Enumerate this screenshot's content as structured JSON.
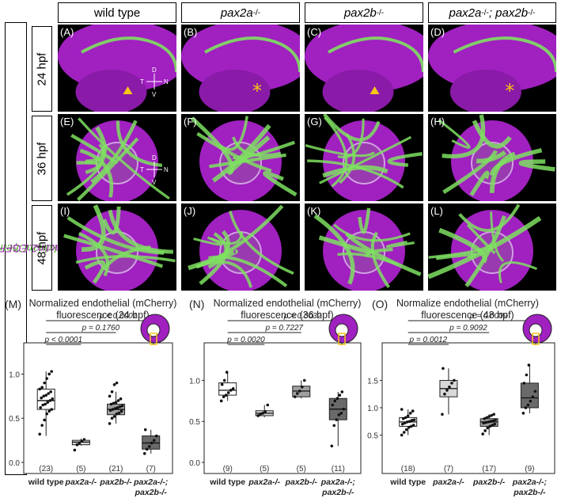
{
  "figure": {
    "side_label_green": "kdrl:mCherry-ras",
    "side_label_sep": "; ",
    "side_label_magenta": "bactin2:EGFP-CAAX",
    "columns": [
      {
        "text": "wild type"
      },
      {
        "text": "pax2a",
        "sup": "-/-"
      },
      {
        "text": "pax2b",
        "sup": "-/-"
      },
      {
        "text": "pax2a",
        "sup": "-/-",
        "text2": "; pax2b",
        "sup2": "-/-"
      }
    ],
    "rows": [
      "24 hpf",
      "36 hpf",
      "48 hpf"
    ],
    "panel_labels": [
      "(A)",
      "(B)",
      "(C)",
      "(D)",
      "(E)",
      "(F)",
      "(G)",
      "(H)",
      "(I)",
      "(J)",
      "(K)",
      "(L)"
    ],
    "axes_marker": {
      "d": "D",
      "v": "V",
      "t": "T",
      "n": "N"
    },
    "colors": {
      "magenta": "#a020c0",
      "green": "#7ee060",
      "yellow": "#f5c518"
    }
  },
  "chart_data": [
    {
      "type": "box",
      "letter": "(M)",
      "title_line1": "Normalized endothelial (mCherry)",
      "title_line2": "fluorescence (24 hpf)",
      "categories": [
        "wild type",
        "pax2a-/-",
        "pax2b-/-",
        "pax2a-/-; pax2b-/-"
      ],
      "n_labels": [
        "(23)",
        "(5)",
        "(21)",
        "(7)"
      ],
      "ylim": [
        0,
        1.3
      ],
      "yticks": [
        0.0,
        0.5,
        1.0
      ],
      "ytick_labels": [
        "0.0",
        "0.5",
        "1.0"
      ],
      "boxes": [
        {
          "min": 0.3,
          "q1": 0.6,
          "median": 0.7,
          "q3": 0.83,
          "max": 1.03,
          "fill": "#ffffff"
        },
        {
          "min": 0.19,
          "q1": 0.2,
          "median": 0.23,
          "q3": 0.25,
          "max": 0.27,
          "fill": "#d8d8d8"
        },
        {
          "min": 0.44,
          "q1": 0.54,
          "median": 0.6,
          "q3": 0.66,
          "max": 0.8,
          "fill": "#a0a0a0"
        },
        {
          "min": 0.1,
          "q1": 0.15,
          "median": 0.22,
          "q3": 0.3,
          "max": 0.37,
          "fill": "#6a6a6a"
        }
      ],
      "points": [
        [
          0.32,
          0.42,
          0.48,
          0.55,
          0.58,
          0.6,
          0.62,
          0.65,
          0.66,
          0.68,
          0.7,
          0.72,
          0.73,
          0.75,
          0.76,
          0.78,
          0.8,
          0.83,
          0.85,
          0.9,
          0.95,
          1.0,
          1.03
        ],
        [
          0.14,
          0.2,
          0.22,
          0.24,
          0.26
        ],
        [
          0.44,
          0.5,
          0.52,
          0.55,
          0.56,
          0.58,
          0.59,
          0.6,
          0.61,
          0.62,
          0.63,
          0.64,
          0.66,
          0.67,
          0.68,
          0.7,
          0.72,
          0.75,
          0.8,
          0.88,
          0.9
        ],
        [
          0.1,
          0.15,
          0.18,
          0.22,
          0.25,
          0.3,
          0.37
        ]
      ],
      "pvalues": [
        {
          "from": 0,
          "to": 3,
          "label": "p < 0.0001"
        },
        {
          "from": 0,
          "to": 2,
          "label": "p = 0.1760"
        },
        {
          "from": 0,
          "to": 1,
          "label": "p < 0.0001"
        }
      ]
    },
    {
      "type": "box",
      "letter": "(N)",
      "title_line1": "Normalized endothelial (mCherry)",
      "title_line2": "fluorescence (36 hpf)",
      "categories": [
        "wild type",
        "pax2a-/-",
        "pax2b-/-",
        "pax2a-/-; pax2b-/-"
      ],
      "n_labels": [
        "(9)",
        "(5)",
        "(5)",
        "(11)"
      ],
      "ylim": [
        0,
        1.4
      ],
      "yticks": [
        0.0,
        0.5,
        1.0
      ],
      "ytick_labels": [
        "0.0",
        "0.5",
        "1.0"
      ],
      "boxes": [
        {
          "min": 0.75,
          "q1": 0.82,
          "median": 0.88,
          "q3": 0.97,
          "max": 1.1,
          "fill": "#ffffff"
        },
        {
          "min": 0.55,
          "q1": 0.57,
          "median": 0.6,
          "q3": 0.63,
          "max": 0.7,
          "fill": "#d8d8d8"
        },
        {
          "min": 0.78,
          "q1": 0.8,
          "median": 0.87,
          "q3": 0.93,
          "max": 1.0,
          "fill": "#a0a0a0"
        },
        {
          "min": 0.2,
          "q1": 0.52,
          "median": 0.65,
          "q3": 0.78,
          "max": 0.86,
          "fill": "#6a6a6a"
        }
      ],
      "points": [
        [
          0.75,
          0.8,
          0.82,
          0.85,
          0.88,
          0.9,
          0.95,
          1.0,
          1.1
        ],
        [
          0.57,
          0.59,
          0.6,
          0.62,
          0.7
        ],
        [
          0.8,
          0.84,
          0.87,
          0.92,
          1.0
        ],
        [
          0.2,
          0.45,
          0.52,
          0.58,
          0.6,
          0.65,
          0.7,
          0.75,
          0.78,
          0.82,
          0.86
        ]
      ],
      "pvalues": [
        {
          "from": 0,
          "to": 3,
          "label": "p = 0.0032"
        },
        {
          "from": 0,
          "to": 2,
          "label": "p = 0.7227"
        },
        {
          "from": 0,
          "to": 1,
          "label": "p = 0.0020"
        }
      ]
    },
    {
      "type": "box",
      "letter": "(O)",
      "title_line1": "Normalize endothelial (mCherry)",
      "title_line2": "fluorescence (48 hpf)",
      "categories": [
        "wild type",
        "pax2a-/-",
        "pax2b-/-",
        "pax2a-/-; pax2b-/-"
      ],
      "n_labels": [
        "(18)",
        "(7)",
        "(17)",
        "(9)"
      ],
      "ylim": [
        0,
        2.1
      ],
      "yticks": [
        0.5,
        1.0,
        1.5
      ],
      "ytick_labels": [
        "0.5",
        "1.0",
        "1.5"
      ],
      "boxes": [
        {
          "min": 0.5,
          "q1": 0.66,
          "median": 0.74,
          "q3": 0.82,
          "max": 0.97,
          "fill": "#ffffff"
        },
        {
          "min": 0.88,
          "q1": 1.2,
          "median": 1.35,
          "q3": 1.5,
          "max": 1.72,
          "fill": "#d8d8d8"
        },
        {
          "min": 0.5,
          "q1": 0.66,
          "median": 0.74,
          "q3": 0.8,
          "max": 0.88,
          "fill": "#a0a0a0"
        },
        {
          "min": 0.9,
          "q1": 1.0,
          "median": 1.18,
          "q3": 1.45,
          "max": 1.78,
          "fill": "#6a6a6a"
        }
      ],
      "points": [
        [
          0.5,
          0.55,
          0.6,
          0.64,
          0.66,
          0.68,
          0.7,
          0.72,
          0.74,
          0.75,
          0.77,
          0.78,
          0.8,
          0.82,
          0.85,
          0.9,
          0.94,
          0.97
        ],
        [
          0.88,
          1.25,
          1.32,
          1.38,
          1.45,
          1.5,
          1.72
        ],
        [
          0.52,
          0.58,
          0.63,
          0.66,
          0.68,
          0.7,
          0.72,
          0.73,
          0.74,
          0.75,
          0.76,
          0.78,
          0.8,
          0.82,
          0.84,
          0.86,
          0.88
        ],
        [
          0.9,
          1.0,
          1.05,
          1.12,
          1.2,
          1.3,
          1.45,
          1.6,
          1.78
        ]
      ],
      "pvalues": [
        {
          "from": 0,
          "to": 3,
          "label": "p = 0.0009"
        },
        {
          "from": 0,
          "to": 2,
          "label": "p = 0.9092"
        },
        {
          "from": 0,
          "to": 1,
          "label": "p = 0.0012"
        }
      ]
    }
  ]
}
